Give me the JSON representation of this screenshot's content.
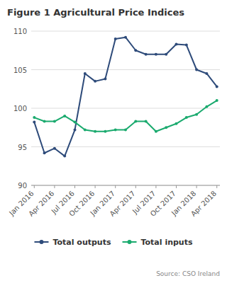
{
  "chart_data": {
    "type": "line",
    "title": "Figure 1 Agricultural Price Indices",
    "annotations": [
      "Source: CSO Ireland"
    ],
    "categories": [
      "Jan 2016",
      null,
      "Apr 2016",
      null,
      "Jul 2016",
      null,
      "Oct 2016",
      null,
      "Jan 2017",
      null,
      "Apr 2017",
      null,
      "Jul 2017",
      null,
      "Oct 2017",
      null,
      "Jan 2018",
      null,
      "Apr 2018"
    ],
    "series": [
      {
        "name": "Total outputs",
        "color": "#2e4b7a",
        "marker": "circle",
        "values": [
          98.2,
          94.2,
          94.8,
          93.8,
          97.2,
          104.5,
          103.5,
          103.8,
          109.0,
          109.2,
          107.5,
          107.0,
          107.0,
          107.0,
          108.3,
          108.2,
          105.0,
          104.5,
          102.8
        ]
      },
      {
        "name": "Total inputs",
        "color": "#1aaa6e",
        "marker": "circle",
        "values": [
          98.8,
          98.3,
          98.3,
          99.0,
          98.2,
          97.2,
          97.0,
          97.0,
          97.2,
          97.2,
          98.3,
          98.3,
          97.0,
          97.5,
          98.0,
          98.8,
          99.2,
          100.2,
          101.0
        ]
      }
    ],
    "ylim": [
      90,
      110
    ],
    "yticks": [
      90,
      95,
      100,
      105,
      110
    ],
    "grid": true,
    "legend": "bottom"
  }
}
